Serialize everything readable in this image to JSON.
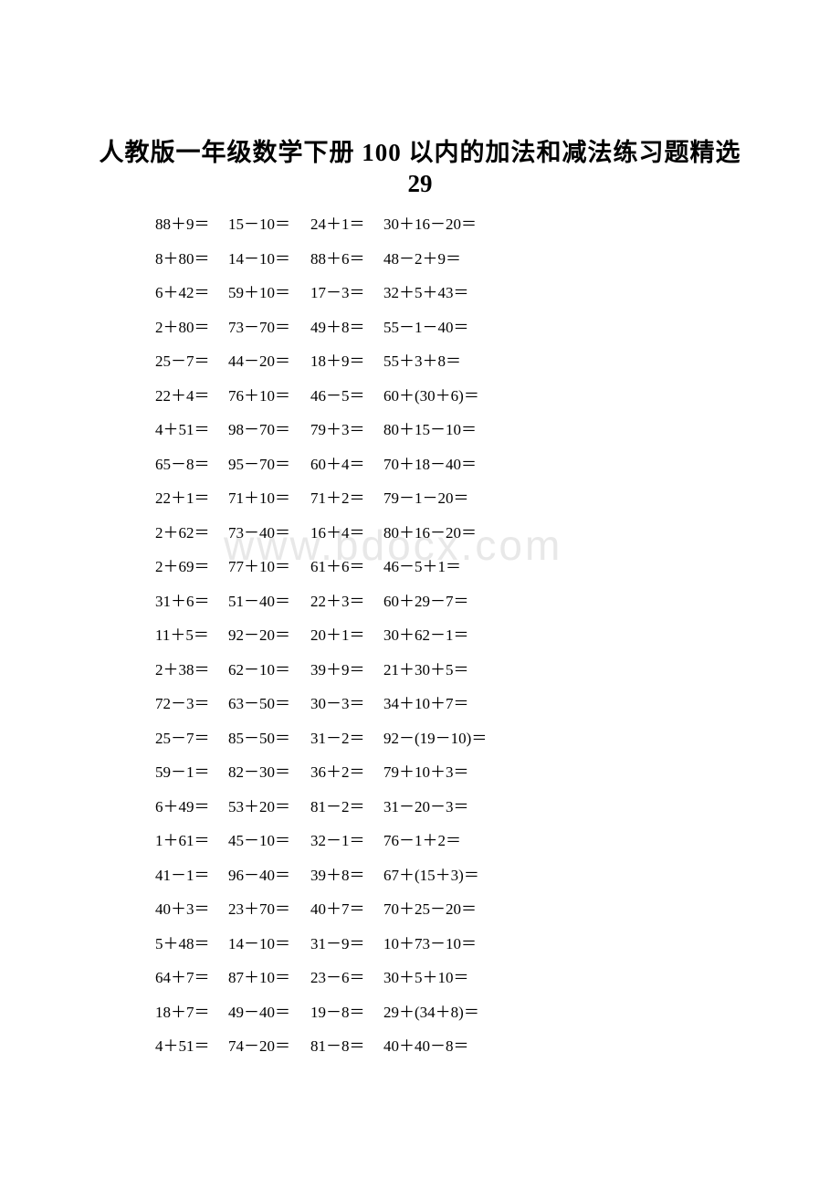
{
  "title": {
    "line1": "人教版一年级数学下册 100 以内的加法和减法练习题精选",
    "line2": "29"
  },
  "watermark": "www.bdocx.com",
  "rows": [
    {
      "c1": "88＋9＝",
      "c2": "15－10＝",
      "c3": "24＋1＝",
      "c4": "30＋16－20＝"
    },
    {
      "c1": "8＋80＝",
      "c2": "14－10＝",
      "c3": "88＋6＝",
      "c4": "48－2＋9＝"
    },
    {
      "c1": "6＋42＝",
      "c2": "59＋10＝",
      "c3": "17－3＝",
      "c4": "32＋5＋43＝"
    },
    {
      "c1": "2＋80＝",
      "c2": "73－70＝",
      "c3": "49＋8＝",
      "c4": "55－1－40＝"
    },
    {
      "c1": "25－7＝",
      "c2": "44－20＝",
      "c3": "18＋9＝",
      "c4": "55＋3＋8＝"
    },
    {
      "c1": "22＋4＝",
      "c2": "76＋10＝",
      "c3": "46－5＝",
      "c4": "60＋(30＋6)＝"
    },
    {
      "c1": "4＋51＝",
      "c2": "98－70＝",
      "c3": "79＋3＝",
      "c4": "80＋15－10＝"
    },
    {
      "c1": "65－8＝",
      "c2": "95－70＝",
      "c3": "60＋4＝",
      "c4": "70＋18－40＝"
    },
    {
      "c1": "22＋1＝",
      "c2": "71＋10＝",
      "c3": "71＋2＝",
      "c4": "79－1－20＝"
    },
    {
      "c1": "2＋62＝",
      "c2": "73－40＝",
      "c3": "16＋4＝",
      "c4": "80＋16－20＝"
    },
    {
      "c1": "2＋69＝",
      "c2": "77＋10＝",
      "c3": "61＋6＝",
      "c4": "46－5＋1＝"
    },
    {
      "c1": "31＋6＝",
      "c2": "51－40＝",
      "c3": "22＋3＝",
      "c4": "60＋29－7＝"
    },
    {
      "c1": "11＋5＝",
      "c2": "92－20＝",
      "c3": "20＋1＝",
      "c4": "30＋62－1＝"
    },
    {
      "c1": "2＋38＝",
      "c2": "62－10＝",
      "c3": "39＋9＝",
      "c4": "21＋30＋5＝"
    },
    {
      "c1": "72－3＝",
      "c2": "63－50＝",
      "c3": "30－3＝",
      "c4": "34＋10＋7＝"
    },
    {
      "c1": "25－7＝",
      "c2": "85－50＝",
      "c3": "31－2＝",
      "c4": "92－(19－10)＝"
    },
    {
      "c1": "59－1＝",
      "c2": "82－30＝",
      "c3": "36＋2＝",
      "c4": "79＋10＋3＝"
    },
    {
      "c1": "6＋49＝",
      "c2": "53＋20＝",
      "c3": "81－2＝",
      "c4": "31－20－3＝"
    },
    {
      "c1": "1＋61＝",
      "c2": "45－10＝",
      "c3": "32－1＝",
      "c4": "76－1＋2＝"
    },
    {
      "c1": "41－1＝",
      "c2": "96－40＝",
      "c3": "39＋8＝",
      "c4": "67＋(15＋3)＝"
    },
    {
      "c1": "40＋3＝",
      "c2": "23＋70＝",
      "c3": "40＋7＝",
      "c4": "70＋25－20＝"
    },
    {
      "c1": "5＋48＝",
      "c2": "14－10＝",
      "c3": "31－9＝",
      "c4": "10＋73－10＝"
    },
    {
      "c1": "64＋7＝",
      "c2": "87＋10＝",
      "c3": "23－6＝",
      "c4": "30＋5＋10＝"
    },
    {
      "c1": "18＋7＝",
      "c2": "49－40＝",
      "c3": "19－8＝",
      "c4": "29＋(34＋8)＝"
    },
    {
      "c1": "4＋51＝",
      "c2": "74－20＝",
      "c3": "81－8＝",
      "c4": "40＋40－8＝"
    }
  ]
}
